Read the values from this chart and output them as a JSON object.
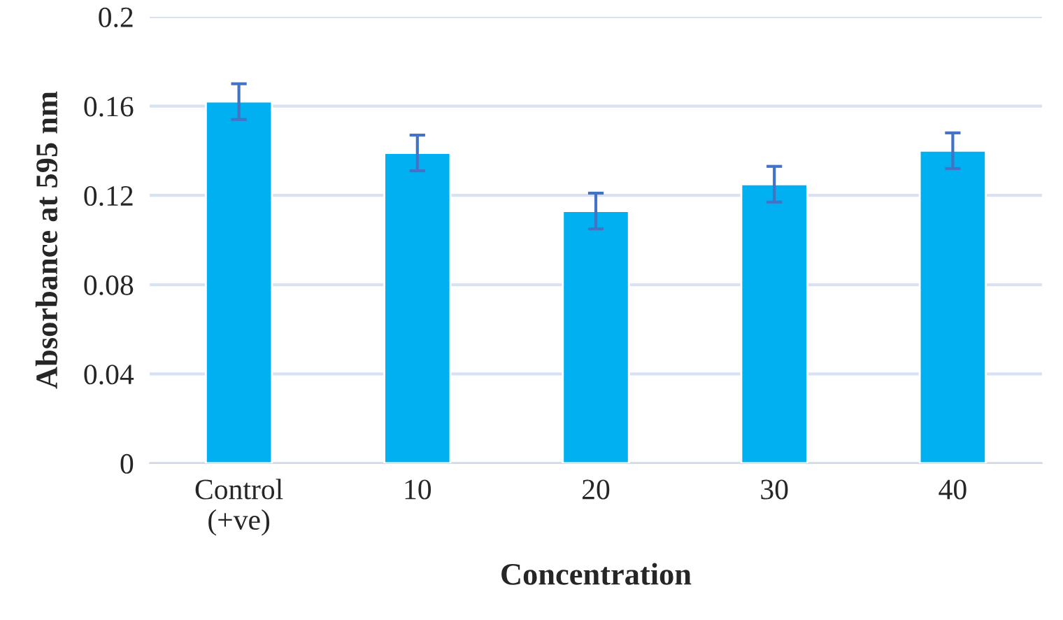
{
  "chart_data": {
    "type": "bar",
    "xlabel": "Concentration",
    "ylabel": "Absorbance at 595 nm",
    "categories": [
      "Control\n(+ve)",
      "10",
      "20",
      "30",
      "40"
    ],
    "values": [
      0.162,
      0.139,
      0.113,
      0.125,
      0.14
    ],
    "errors": [
      0.008,
      0.008,
      0.008,
      0.008,
      0.008
    ],
    "color": "#00b0f0",
    "ylim": [
      0,
      0.2
    ],
    "yticks": [
      {
        "value": 0,
        "label": "0"
      },
      0.04,
      0.08,
      0.12,
      0.16,
      0.2
    ],
    "grid": "y"
  }
}
